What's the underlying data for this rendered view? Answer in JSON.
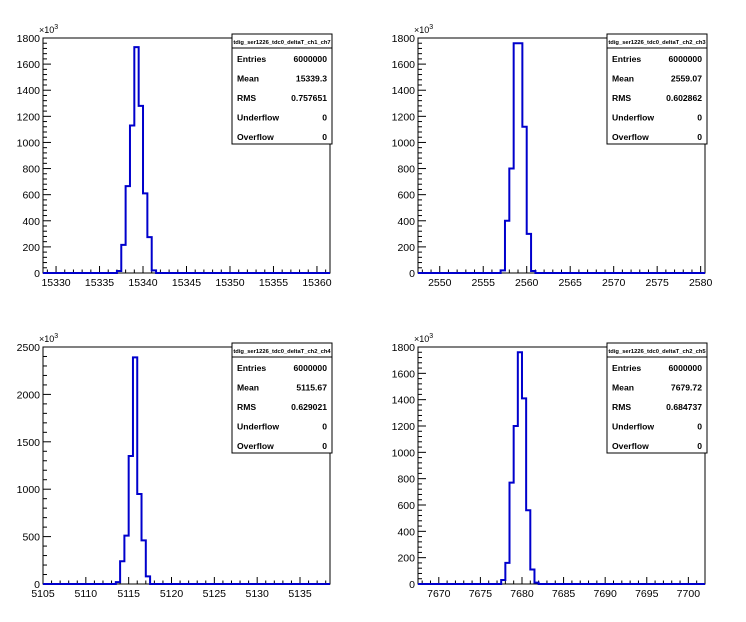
{
  "colors": {
    "histogram": "#0000cc",
    "axis": "#000000",
    "background": "#ffffff"
  },
  "chart_data": [
    {
      "type": "histogram",
      "stats": {
        "title": "tdig_ser1226_tdc0_deltaT_ch1_ch7",
        "rows": [
          {
            "label": "Entries",
            "value": "6000000"
          },
          {
            "label": "Mean",
            "value": "15339.3"
          },
          {
            "label": "RMS",
            "value": "0.757651"
          },
          {
            "label": "Underflow",
            "value": "0"
          },
          {
            "label": "Overflow",
            "value": "0"
          }
        ]
      },
      "xlim": [
        15328.5,
        15361.5
      ],
      "ylim": [
        0,
        1800
      ],
      "y_multiplier": "10",
      "y_multiplier_exp": "3",
      "xticks": [
        15330,
        15335,
        15340,
        15345,
        15350,
        15355,
        15360
      ],
      "yticks": [
        0,
        200,
        400,
        600,
        800,
        1000,
        1200,
        1400,
        1600,
        1800
      ],
      "bin_width": 0.5,
      "bins": [
        [
          15336.5,
          0
        ],
        [
          15337.0,
          15
        ],
        [
          15337.5,
          215
        ],
        [
          15338.0,
          665
        ],
        [
          15338.5,
          1130
        ],
        [
          15339.0,
          1730
        ],
        [
          15339.5,
          1280
        ],
        [
          15340.0,
          610
        ],
        [
          15340.5,
          275
        ],
        [
          15341.0,
          20
        ],
        [
          15341.5,
          0
        ]
      ]
    },
    {
      "type": "histogram",
      "stats": {
        "title": "tdig_ser1226_tdc0_deltaT_ch2_ch3",
        "rows": [
          {
            "label": "Entries",
            "value": "6000000"
          },
          {
            "label": "Mean",
            "value": "2559.07"
          },
          {
            "label": "RMS",
            "value": "0.602862"
          },
          {
            "label": "Underflow",
            "value": "0"
          },
          {
            "label": "Overflow",
            "value": "0"
          }
        ]
      },
      "xlim": [
        2547.5,
        2580.5
      ],
      "ylim": [
        0,
        1800
      ],
      "y_multiplier": "10",
      "y_multiplier_exp": "3",
      "xticks": [
        2550,
        2555,
        2560,
        2565,
        2570,
        2575,
        2580
      ],
      "yticks": [
        0,
        200,
        400,
        600,
        800,
        1000,
        1200,
        1400,
        1600,
        1800
      ],
      "bin_width": 0.5,
      "bins": [
        [
          2556.5,
          0
        ],
        [
          2557.0,
          20
        ],
        [
          2557.5,
          400
        ],
        [
          2558.0,
          800
        ],
        [
          2558.5,
          1760
        ],
        [
          2559.0,
          1760
        ],
        [
          2559.5,
          1120
        ],
        [
          2560.0,
          300
        ],
        [
          2560.5,
          15
        ],
        [
          2561.0,
          0
        ]
      ]
    },
    {
      "type": "histogram",
      "stats": {
        "title": "tdig_ser1226_tdc0_deltaT_ch2_ch4",
        "rows": [
          {
            "label": "Entries",
            "value": "6000000"
          },
          {
            "label": "Mean",
            "value": "5115.67"
          },
          {
            "label": "RMS",
            "value": "0.629021"
          },
          {
            "label": "Underflow",
            "value": "0"
          },
          {
            "label": "Overflow",
            "value": "0"
          }
        ]
      },
      "xlim": [
        5105,
        5138.5
      ],
      "ylim": [
        0,
        2500
      ],
      "y_multiplier": "10",
      "y_multiplier_exp": "3",
      "xticks": [
        5105,
        5110,
        5115,
        5120,
        5125,
        5130,
        5135
      ],
      "yticks": [
        0,
        500,
        1000,
        1500,
        2000,
        2500
      ],
      "bin_width": 0.5,
      "bins": [
        [
          5113.0,
          0
        ],
        [
          5113.5,
          20
        ],
        [
          5114.0,
          240
        ],
        [
          5114.5,
          510
        ],
        [
          5115.0,
          1350
        ],
        [
          5115.5,
          2390
        ],
        [
          5116.0,
          950
        ],
        [
          5116.5,
          460
        ],
        [
          5117.0,
          80
        ],
        [
          5117.5,
          0
        ]
      ]
    },
    {
      "type": "histogram",
      "stats": {
        "title": "tdig_ser1226_tdc0_deltaT_ch2_ch5",
        "rows": [
          {
            "label": "Entries",
            "value": "6000000"
          },
          {
            "label": "Mean",
            "value": "7679.72"
          },
          {
            "label": "RMS",
            "value": "0.684737"
          },
          {
            "label": "Underflow",
            "value": "0"
          },
          {
            "label": "Overflow",
            "value": "0"
          }
        ]
      },
      "xlim": [
        7667.5,
        7702
      ],
      "ylim": [
        0,
        1800
      ],
      "y_multiplier": "10",
      "y_multiplier_exp": "3",
      "xticks": [
        7670,
        7675,
        7680,
        7685,
        7690,
        7695,
        7700
      ],
      "yticks": [
        0,
        200,
        400,
        600,
        800,
        1000,
        1200,
        1400,
        1600,
        1800
      ],
      "bin_width": 0.5,
      "bins": [
        [
          7677.0,
          0
        ],
        [
          7677.5,
          30
        ],
        [
          7678.0,
          160
        ],
        [
          7678.5,
          770
        ],
        [
          7679.0,
          1200
        ],
        [
          7679.5,
          1760
        ],
        [
          7680.0,
          1410
        ],
        [
          7680.5,
          560
        ],
        [
          7681.0,
          110
        ],
        [
          7681.5,
          10
        ],
        [
          7682.0,
          0
        ]
      ]
    }
  ]
}
